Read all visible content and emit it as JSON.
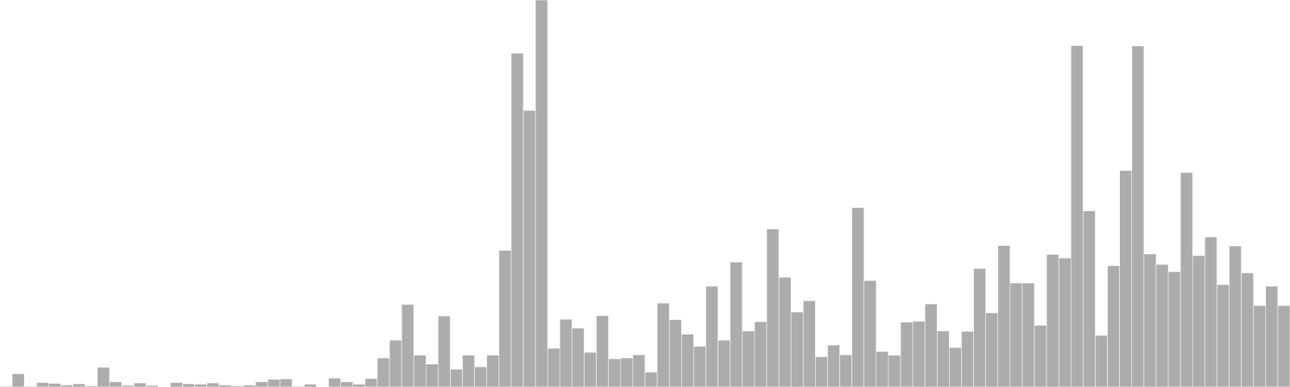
{
  "chart_data": {
    "type": "bar",
    "title": "",
    "xlabel": "",
    "ylabel": "",
    "legend": "none",
    "grid": false,
    "bar_color": "#acacac",
    "background_color": "#ffffff",
    "ylim": [
      0,
      480
    ],
    "values": [
      1,
      16.5,
      1,
      5.5,
      4.5,
      2.5,
      4,
      1.5,
      24.5,
      6.5,
      2,
      5,
      2,
      0,
      5.5,
      4,
      3.5,
      5,
      2.5,
      1.5,
      2.5,
      6.5,
      9.5,
      10,
      1,
      3.5,
      0,
      11,
      6.5,
      3.5,
      10.5,
      36,
      58,
      102.5,
      39.5,
      28.5,
      88,
      22,
      39.5,
      25,
      39.5,
      169.5,
      414,
      343,
      480,
      48,
      84,
      73,
      43,
      88.5,
      35,
      36,
      40,
      18.5,
      104,
      83.5,
      65.5,
      50.5,
      125,
      58,
      155,
      69.5,
      81,
      196,
      136,
      93,
      107,
      37.5,
      52,
      40,
      222.5,
      132,
      44,
      39.5,
      80.5,
      81.5,
      103,
      69.5,
      49,
      69,
      147,
      92,
      175.5,
      129,
      129,
      76.5,
      164.5,
      160,
      423.5,
      218.5,
      64,
      150.5,
      268.5,
      423,
      165,
      152,
      143,
      266,
      163,
      186,
      127,
      175,
      141.5,
      101,
      125,
      101
    ]
  }
}
